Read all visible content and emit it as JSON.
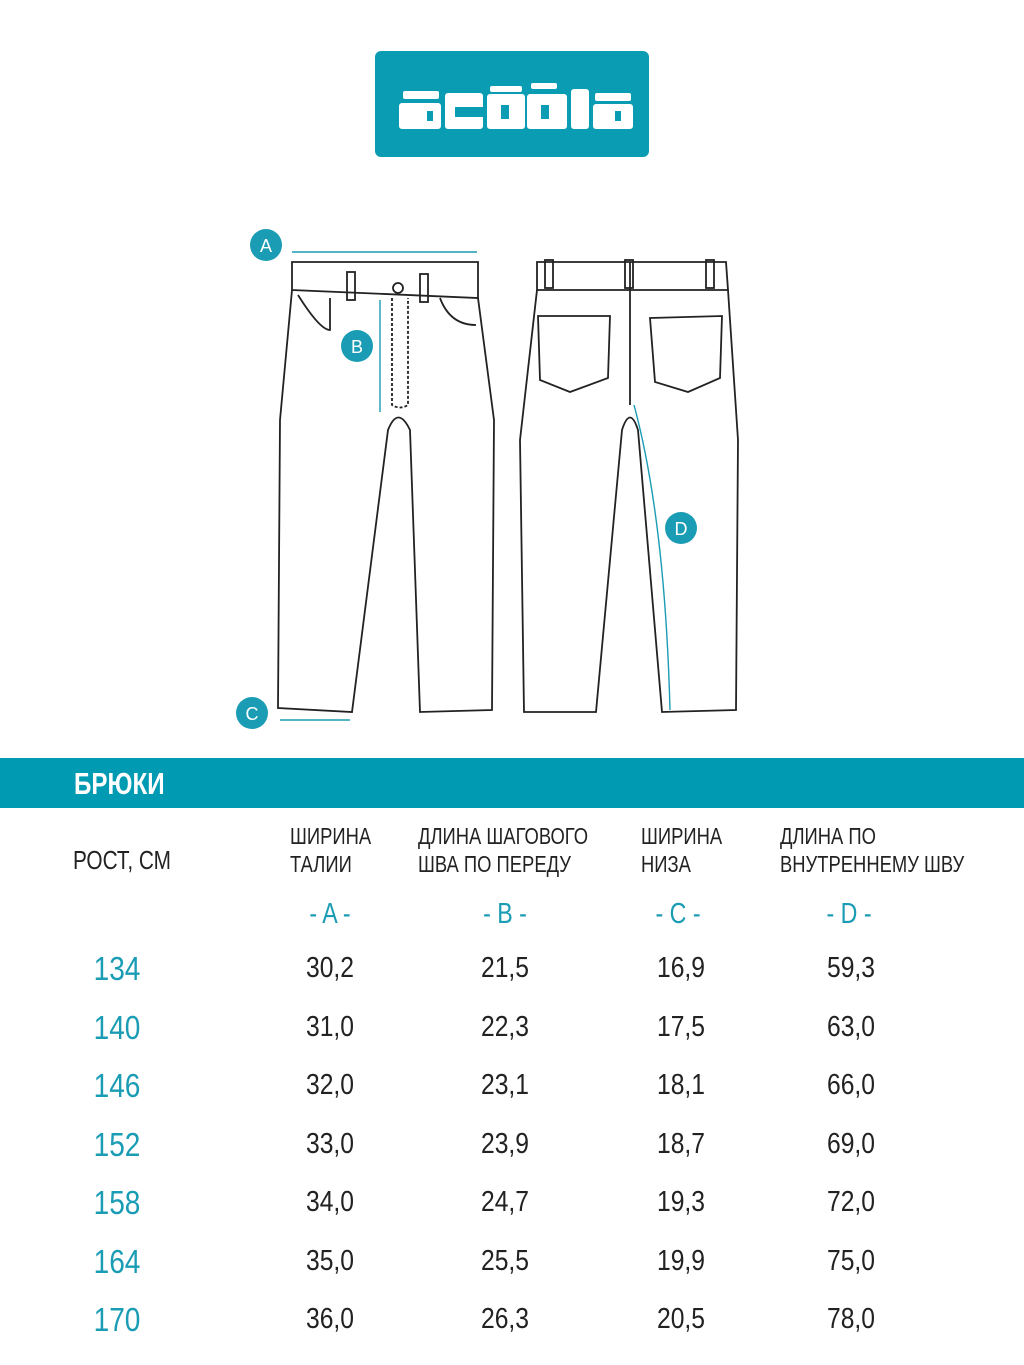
{
  "brand": {
    "logo_text": "acoola",
    "color": "#0a9cb2"
  },
  "diagram": {
    "markers": [
      "A",
      "B",
      "C",
      "D"
    ]
  },
  "section_title": "БРЮКИ",
  "table": {
    "height_header": "РОСТ, СМ",
    "columns": [
      {
        "line1": "ШИРИНА",
        "line2": "ТАЛИИ",
        "letter": "- A -"
      },
      {
        "line1": "ДЛИНА ШАГОВОГО",
        "line2": "ШВА ПО ПЕРЕДУ",
        "letter": "- B -"
      },
      {
        "line1": "ШИРИНА",
        "line2": "НИЗА",
        "letter": "- C -"
      },
      {
        "line1": "ДЛИНА ПО",
        "line2": "ВНУТРЕННЕМУ ШВУ",
        "letter": "- D -"
      }
    ],
    "rows": [
      {
        "height": "134",
        "a": "30,2",
        "b": "21,5",
        "c": "16,9",
        "d": "59,3"
      },
      {
        "height": "140",
        "a": "31,0",
        "b": "22,3",
        "c": "17,5",
        "d": "63,0"
      },
      {
        "height": "146",
        "a": "32,0",
        "b": "23,1",
        "c": "18,1",
        "d": "66,0"
      },
      {
        "height": "152",
        "a": "33,0",
        "b": "23,9",
        "c": "18,7",
        "d": "69,0"
      },
      {
        "height": "158",
        "a": "34,0",
        "b": "24,7",
        "c": "19,3",
        "d": "72,0"
      },
      {
        "height": "164",
        "a": "35,0",
        "b": "25,5",
        "c": "19,9",
        "d": "75,0"
      },
      {
        "height": "170",
        "a": "36,0",
        "b": "26,3",
        "c": "20,5",
        "d": "78,0"
      }
    ]
  }
}
